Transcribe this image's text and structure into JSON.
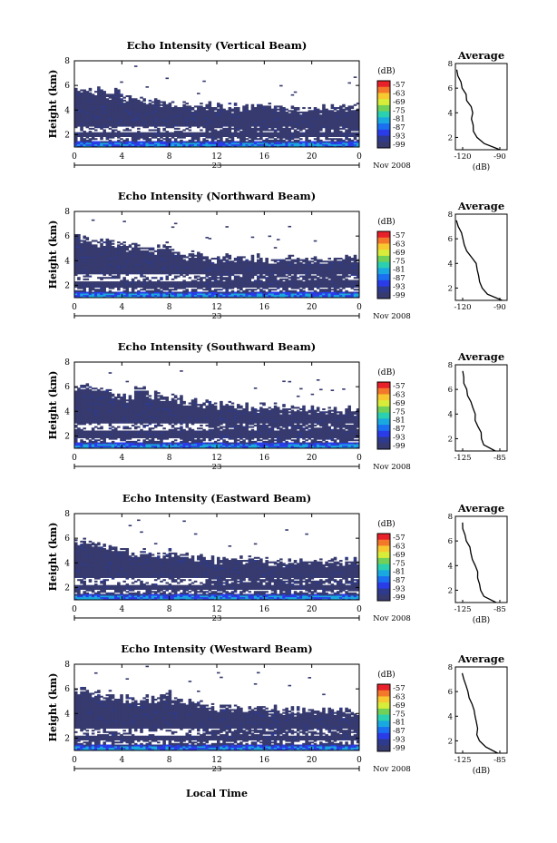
{
  "chart_data": {
    "type": "heatmap",
    "panels": [
      {
        "title": "Echo Intensity (Vertical Beam)",
        "avg_xticks": [
          "-120",
          "-90"
        ],
        "avg_xlabel": "(dB)",
        "avg_profile": [
          [
            1.0,
            -90
          ],
          [
            1.5,
            -103
          ],
          [
            2.0,
            -109
          ],
          [
            2.5,
            -111
          ],
          [
            3.0,
            -112
          ],
          [
            3.5,
            -112
          ],
          [
            4.0,
            -111
          ],
          [
            4.5,
            -113
          ],
          [
            5.0,
            -116
          ],
          [
            5.5,
            -118
          ],
          [
            6.0,
            -120
          ],
          [
            6.5,
            -122
          ],
          [
            7.0,
            -123
          ],
          [
            7.5,
            -125
          ]
        ]
      },
      {
        "title": "Echo Intensity (Northward Beam)",
        "avg_xticks": [
          "-120",
          "-90"
        ],
        "avg_xlabel": "",
        "avg_profile": [
          [
            1.0,
            -88
          ],
          [
            1.5,
            -100
          ],
          [
            2.0,
            -105
          ],
          [
            2.5,
            -107
          ],
          [
            3.0,
            -108
          ],
          [
            3.5,
            -109
          ],
          [
            4.0,
            -110
          ],
          [
            4.5,
            -113
          ],
          [
            5.0,
            -116
          ],
          [
            5.5,
            -118
          ],
          [
            6.0,
            -120
          ],
          [
            6.5,
            -121
          ],
          [
            7.0,
            -123
          ],
          [
            7.5,
            -125
          ]
        ]
      },
      {
        "title": "Echo Intensity (Southward Beam)",
        "avg_xticks": [
          "-125",
          "-85"
        ],
        "avg_xlabel": "",
        "avg_profile": [
          [
            1.0,
            -90
          ],
          [
            1.5,
            -103
          ],
          [
            2.0,
            -106
          ],
          [
            2.5,
            -104
          ],
          [
            3.0,
            -109
          ],
          [
            3.5,
            -112
          ],
          [
            4.0,
            -112
          ],
          [
            4.5,
            -113
          ],
          [
            5.0,
            -116
          ],
          [
            5.5,
            -119
          ],
          [
            6.0,
            -121
          ],
          [
            6.5,
            -123
          ],
          [
            7.0,
            -124
          ],
          [
            7.5,
            -125
          ]
        ]
      },
      {
        "title": "Echo Intensity (Eastward Beam)",
        "avg_xticks": [
          "-125",
          "-85"
        ],
        "avg_xlabel": "(dB)",
        "avg_profile": [
          [
            1.0,
            -88
          ],
          [
            1.5,
            -101
          ],
          [
            2.0,
            -106
          ],
          [
            2.5,
            -108
          ],
          [
            3.0,
            -109
          ],
          [
            3.5,
            -110
          ],
          [
            4.0,
            -112
          ],
          [
            4.5,
            -114
          ],
          [
            5.0,
            -116
          ],
          [
            5.5,
            -118
          ],
          [
            6.0,
            -120
          ],
          [
            6.5,
            -122
          ],
          [
            7.0,
            -124
          ],
          [
            7.5,
            -125
          ]
        ]
      },
      {
        "title": "Echo Intensity (Westward Beam)",
        "avg_xticks": [
          "-125",
          "-85"
        ],
        "avg_xlabel": "(dB)",
        "avg_profile": [
          [
            1.0,
            -88
          ],
          [
            1.5,
            -100
          ],
          [
            2.0,
            -106
          ],
          [
            2.5,
            -109
          ],
          [
            3.0,
            -110
          ],
          [
            3.5,
            -110
          ],
          [
            4.0,
            -111
          ],
          [
            4.5,
            -113
          ],
          [
            5.0,
            -116
          ],
          [
            5.5,
            -118
          ],
          [
            6.0,
            -120
          ],
          [
            6.5,
            -122
          ],
          [
            7.0,
            -124
          ],
          [
            7.5,
            -125
          ]
        ]
      }
    ],
    "ylabel": "Height (km)",
    "yticks": [
      "2",
      "4",
      "6",
      "8"
    ],
    "ylim": [
      1,
      8
    ],
    "xticks": [
      "0",
      "4",
      "8",
      "12",
      "16",
      "20",
      "0"
    ],
    "xlim": [
      0,
      24
    ],
    "day_label": "23",
    "date_label": "Nov 2008",
    "xlabel": "Local Time",
    "colorbar": {
      "unit": "(dB)",
      "labels": [
        "-57",
        "-63",
        "-69",
        "-75",
        "-81",
        "-87",
        "-93",
        "-99"
      ],
      "colors": [
        "#e8202a",
        "#f4782a",
        "#f8c830",
        "#d8ec3a",
        "#70d058",
        "#2ad0b0",
        "#1aa8e0",
        "#1a70f0",
        "#2a3ce8",
        "#2e3a8e",
        "#363a6e"
      ]
    },
    "avg_title": "Average",
    "avg_yticks": [
      "2",
      "4",
      "6",
      "8"
    ]
  },
  "colors": {
    "background_echo": "#363a6e",
    "mid_echo": "#2a3ce8",
    "strong_echo": "#1aa8e0"
  }
}
